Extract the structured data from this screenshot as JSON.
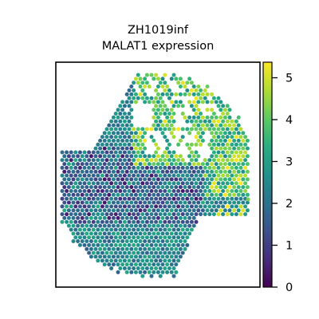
{
  "chart_data": {
    "type": "scatter",
    "title_line1": "ZH1019inf",
    "title_line2": "MALAT1 expression",
    "xlabel": "",
    "ylabel": "",
    "axes_ticks_visible": false,
    "grid": false,
    "colormap": "viridis",
    "colorbar": {
      "position": "right",
      "vmin": 0,
      "vmax": 5.3,
      "ticks": [
        "0",
        "1",
        "2",
        "3",
        "4",
        "5"
      ]
    },
    "seed": 1019
  }
}
